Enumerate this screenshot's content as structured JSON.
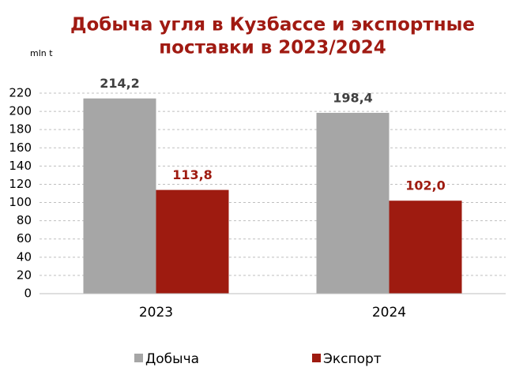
{
  "chart_data": {
    "type": "bar",
    "title": [
      "Добыча угля в Кузбассе и экспортные",
      "поставки в 2023/2024"
    ],
    "y_unit": "mln t",
    "categories": [
      "2023",
      "2024"
    ],
    "series": [
      {
        "name": "Добыча",
        "color": "#a6a6a6",
        "label_color": "#404040",
        "values": [
          214.2,
          198.4
        ],
        "value_labels": [
          "214,2",
          "198,4"
        ]
      },
      {
        "name": "Экспорт",
        "color": "#9e1b10",
        "label_color": "#9e1b10",
        "values": [
          113.8,
          102.0
        ],
        "value_labels": [
          "113,8",
          "102,0"
        ]
      }
    ],
    "ylim": [
      0,
      220
    ],
    "yticks": [
      0,
      20,
      40,
      60,
      80,
      100,
      120,
      140,
      160,
      180,
      200,
      220
    ],
    "grid": true,
    "legend": "bottom"
  }
}
